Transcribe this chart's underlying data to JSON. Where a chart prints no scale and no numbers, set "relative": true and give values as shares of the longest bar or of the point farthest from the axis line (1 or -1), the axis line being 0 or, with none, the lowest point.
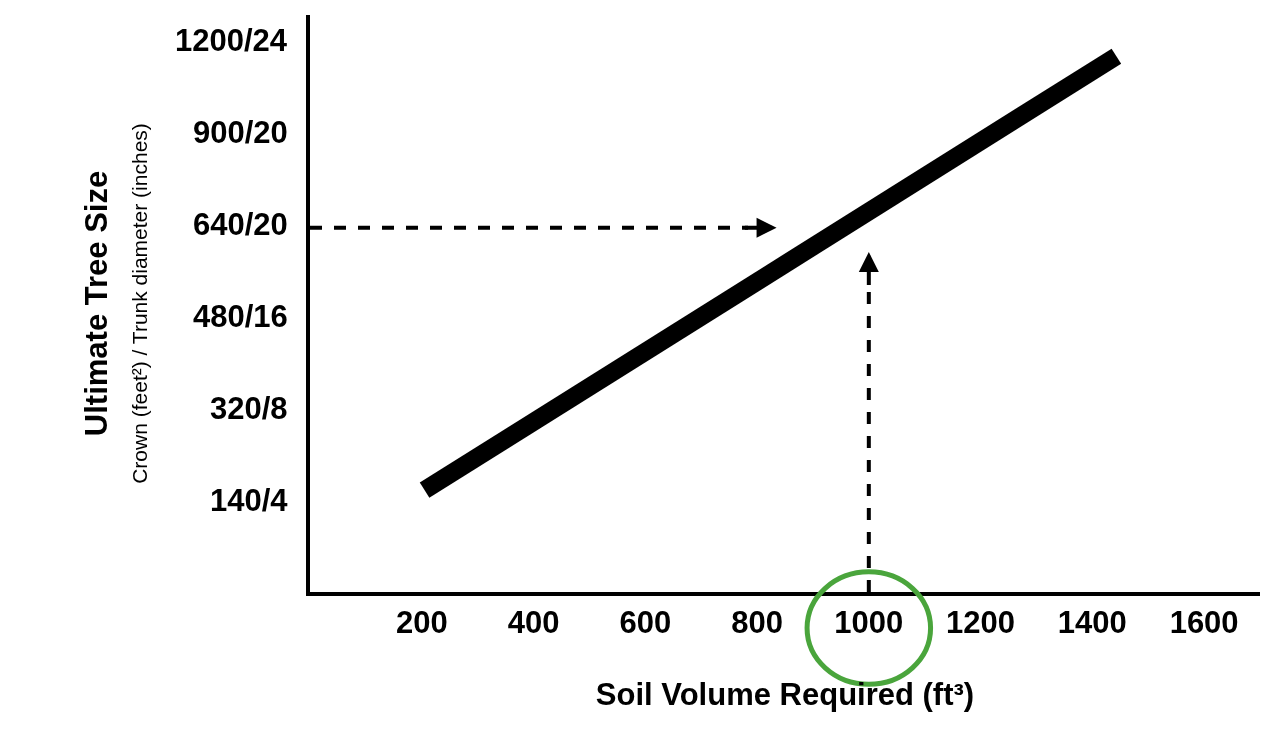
{
  "chart_data": {
    "type": "line",
    "relative": true,
    "xlabel": "Soil Volume Required (ft³)",
    "ylabel": "Ultimate Tree Size\nCrown (feet²) / Trunk diameter (inches)",
    "x": [
      205,
      1443
    ],
    "series": [
      {
        "color": "#000000",
        "values": [
          0.19,
          1
        ]
      }
    ],
    "xlim": [
      0,
      1700
    ],
    "xticks": [
      200,
      400,
      600,
      800,
      1000,
      1200,
      1400,
      1600
    ],
    "annotations": [
      "140/4",
      "320/8",
      "480/16",
      "640/20",
      "900/20",
      "1200/24"
    ],
    "ref_lines": [
      {
        "axis": "y",
        "value": 0.68,
        "color": "#000000",
        "line_style": "dashed"
      },
      {
        "axis": "x",
        "value": 1000,
        "color": "#000000",
        "line_style": "dashed"
      }
    ],
    "marker": "none",
    "line_style": "solid"
  }
}
